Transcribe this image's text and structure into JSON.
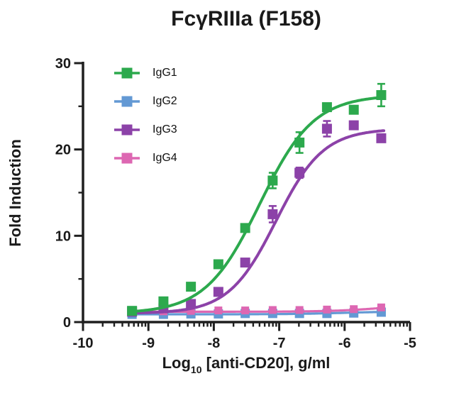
{
  "chart_data": {
    "type": "line",
    "title": "FcγRIIIa (F158)",
    "xlabel": "Log10 [anti-CD20], g/ml",
    "xlabel_parts": {
      "pre": "Log",
      "sub": "10",
      "post": " [anti-CD20], g/ml"
    },
    "ylabel": "Fold Induction",
    "xlim": [
      -10,
      -5
    ],
    "ylim": [
      0,
      30
    ],
    "x_ticks": [
      -10,
      -9,
      -8,
      -7,
      -6,
      -5
    ],
    "y_ticks": [
      0,
      10,
      20,
      30
    ],
    "y_minor_ticks": [
      5,
      15,
      25
    ],
    "x_minor_tick_rule": "log10-within-decade",
    "grid": false,
    "legend_position": "upper-left-inside",
    "axis_color": "#1f1f1f",
    "x": [
      -9.25,
      -8.77,
      -8.35,
      -7.93,
      -7.52,
      -7.1,
      -6.69,
      -6.27,
      -5.86,
      -5.44
    ],
    "series": [
      {
        "name": "IgG1",
        "color": "#2CA94D",
        "marker": "square",
        "marker_size": 14,
        "values": [
          1.3,
          2.4,
          4.1,
          6.7,
          10.9,
          16.4,
          20.8,
          24.9,
          24.6,
          26.3
        ],
        "errors": [
          0,
          0,
          0,
          0,
          0,
          0.9,
          1.2,
          0,
          0,
          1.3
        ],
        "fit": {
          "bottom": 1.0,
          "top": 26.3,
          "logEC50": -7.3,
          "hill": 1.05
        }
      },
      {
        "name": "IgG2",
        "color": "#6399D4",
        "marker": "square",
        "marker_size": 13,
        "values": [
          0.9,
          0.9,
          0.95,
          0.95,
          1.0,
          1.0,
          1.0,
          1.0,
          1.05,
          1.15
        ],
        "errors": [
          0,
          0,
          0,
          0,
          0,
          0,
          0,
          0,
          0,
          0
        ],
        "fit": {
          "bottom": 0.9,
          "top": 1.25,
          "logEC50": -6.0,
          "hill": 1.0
        }
      },
      {
        "name": "IgG3",
        "color": "#8C42A8",
        "marker": "square",
        "marker_size": 14,
        "values": [
          1.2,
          1.6,
          2.1,
          3.5,
          6.9,
          12.5,
          17.3,
          22.4,
          22.8,
          21.3
        ],
        "errors": [
          0,
          0,
          0,
          0,
          0,
          0.95,
          0.6,
          0.9,
          0,
          0
        ],
        "fit": {
          "bottom": 1.0,
          "top": 22.4,
          "logEC50": -7.05,
          "hill": 1.2
        }
      },
      {
        "name": "IgG4",
        "color": "#DD67B2",
        "marker": "square",
        "marker_size": 11,
        "values": [
          1.2,
          1.25,
          1.3,
          1.35,
          1.35,
          1.4,
          1.4,
          1.45,
          1.5,
          1.7
        ],
        "errors": [
          0,
          0,
          0,
          0,
          0,
          0,
          0,
          0,
          0,
          0
        ],
        "fit": {
          "bottom": 1.2,
          "top": 2.4,
          "logEC50": -5.2,
          "hill": 1.0
        }
      }
    ]
  }
}
